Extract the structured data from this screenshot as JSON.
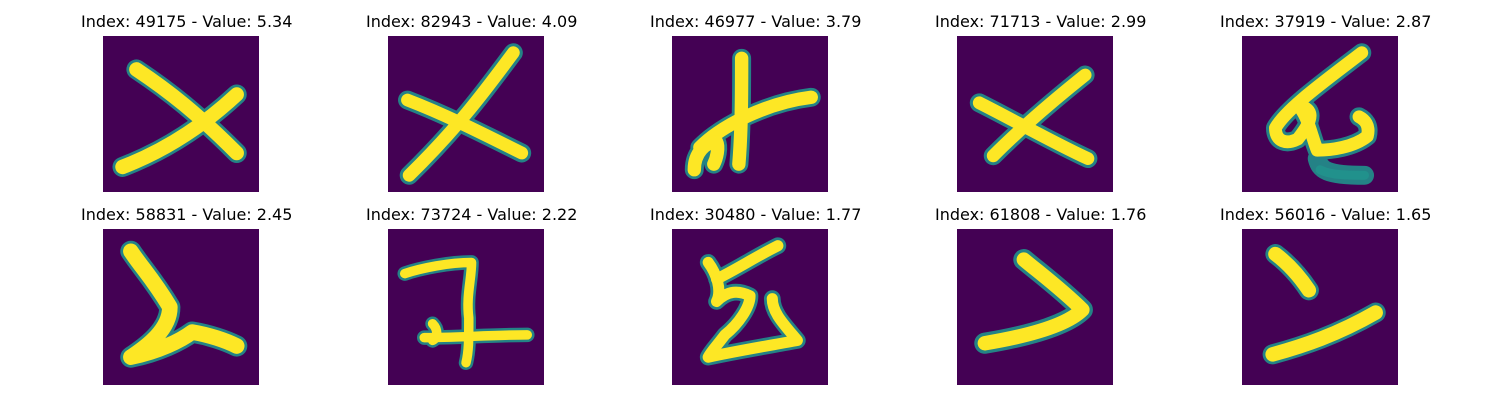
{
  "panels": [
    {
      "index": "49175",
      "value": "5.34",
      "title": "Index: 49175 - Value: 5.34"
    },
    {
      "index": "82943",
      "value": "4.09",
      "title": "Index: 82943 - Value: 4.09"
    },
    {
      "index": "46977",
      "value": "3.79",
      "title": "Index: 46977 - Value: 3.79"
    },
    {
      "index": "71713",
      "value": "2.99",
      "title": "Index: 71713 - Value: 2.99"
    },
    {
      "index": "37919",
      "value": "2.87",
      "title": "Index: 37919 - Value: 2.87"
    },
    {
      "index": "58831",
      "value": "2.45",
      "title": "Index: 58831 - Value: 2.45"
    },
    {
      "index": "73724",
      "value": "2.22",
      "title": "Index: 73724 - Value: 2.22"
    },
    {
      "index": "30480",
      "value": "1.77",
      "title": "Index: 30480 - Value: 1.77"
    },
    {
      "index": "61808",
      "value": "1.76",
      "title": "Index: 61808 - Value: 1.76"
    },
    {
      "index": "56016",
      "value": "1.65",
      "title": "Index: 56016 - Value: 1.65"
    }
  ],
  "colors": {
    "background": "#440154",
    "stroke": "#fde725",
    "edge": "#21918c"
  }
}
